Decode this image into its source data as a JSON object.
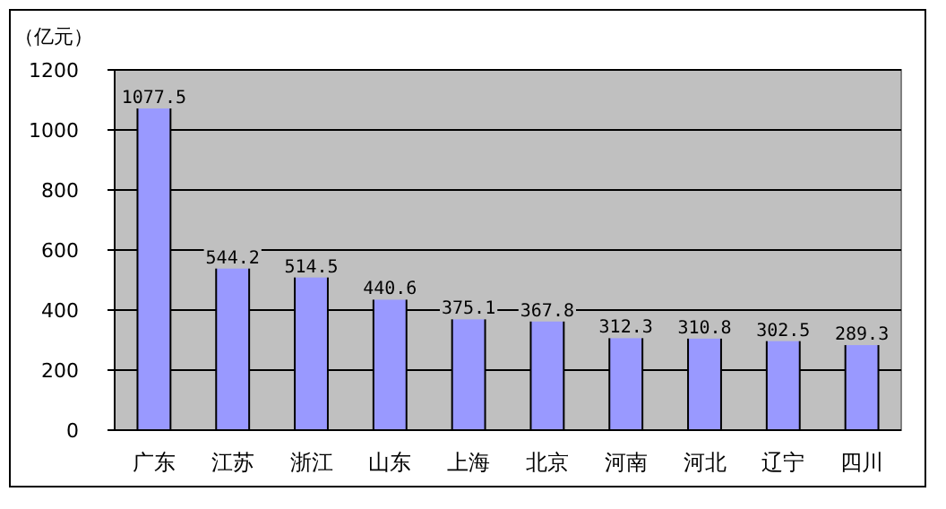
{
  "chart_data": {
    "type": "bar",
    "ylabel": "（亿元）",
    "categories": [
      "广东",
      "江苏",
      "浙江",
      "山东",
      "上海",
      "北京",
      "河南",
      "河北",
      "辽宁",
      "四川"
    ],
    "values": [
      1077.5,
      544.2,
      514.5,
      440.6,
      375.1,
      367.8,
      312.3,
      310.8,
      302.5,
      289.3
    ],
    "color": "#9999ff",
    "ylim": [
      0,
      1200
    ],
    "yticks": [
      0,
      200,
      400,
      600,
      800,
      1000,
      1200
    ],
    "grid": "y",
    "data_labels": true
  }
}
